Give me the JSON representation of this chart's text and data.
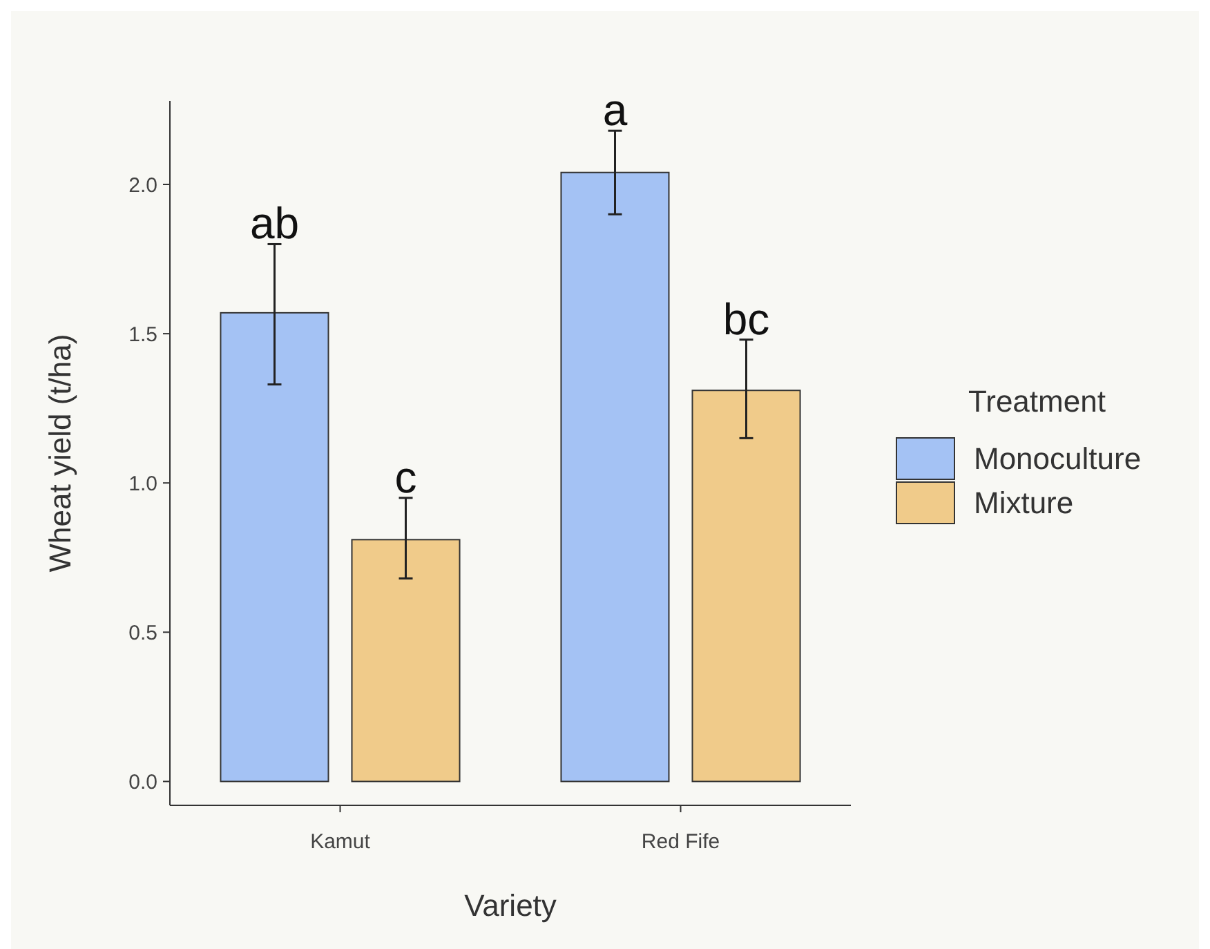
{
  "chart_data": {
    "type": "bar",
    "xlabel": "Variety",
    "ylabel": "Wheat yield (t/ha)",
    "legend_title": "Treatment",
    "legend": "right",
    "grid": false,
    "categories": [
      "Kamut",
      "Red Fife"
    ],
    "series": [
      {
        "name": "Monoculture",
        "color": "#a4c2f4",
        "values": [
          1.57,
          2.04
        ],
        "errors": [
          [
            1.33,
            1.8
          ],
          [
            1.9,
            2.18
          ]
        ]
      },
      {
        "name": "Mixture",
        "color": "#f0cb8a",
        "values": [
          0.81,
          1.31
        ],
        "errors": [
          [
            0.68,
            0.95
          ],
          [
            1.15,
            1.48
          ]
        ]
      }
    ],
    "ylim": [
      -0.08,
      2.28
    ],
    "yticks": [
      {
        "value": 0,
        "label": "0.0"
      },
      {
        "value": 0.5,
        "label": "0.5"
      },
      {
        "value": 1,
        "label": "1.0"
      },
      {
        "value": 1.5,
        "label": "1.5"
      },
      {
        "value": 2,
        "label": "2.0"
      }
    ],
    "annotations": [
      "ab",
      "c",
      "a",
      "bc"
    ]
  }
}
